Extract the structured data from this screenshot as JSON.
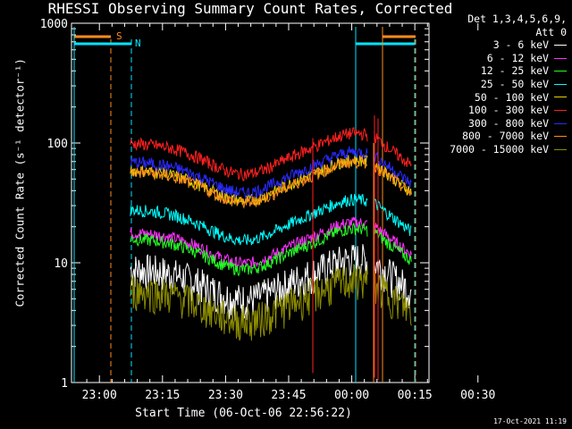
{
  "chart_data": {
    "type": "line",
    "title": "RHESSI Observing Summary Count Rates, Corrected",
    "xlabel": "Start Time (06-Oct-06 22:56:22)",
    "ylabel": "Corrected Count Rate (s⁻¹ detector⁻¹)",
    "ylim": [
      1,
      1000
    ],
    "yscale": "log",
    "yticks": [
      "1",
      "10",
      "100",
      "1000"
    ],
    "xticks": [
      "23:00",
      "23:15",
      "23:30",
      "23:45",
      "00:00",
      "00:15",
      "00:30"
    ],
    "xlim_minutes_after_start": [
      -3,
      82
    ],
    "legend_header": [
      "Det 1,3,4,5,6,9,",
      "Att 0"
    ],
    "legend_position": "top-right",
    "markers": {
      "S": {
        "label": "S",
        "color": "#ff8c1a"
      },
      "N": {
        "label": "N",
        "color": "#00e5ff"
      }
    },
    "series": [
      {
        "name": "3 - 6 keV",
        "color": "#ffffff",
        "base": 9
      },
      {
        "name": "6 - 12 keV",
        "color": "#ff30ff",
        "base": 18
      },
      {
        "name": "12 - 25 keV",
        "color": "#22ff22",
        "base": 16
      },
      {
        "name": "25 - 50 keV",
        "color": "#00ffff",
        "base": 28
      },
      {
        "name": "50 - 100 keV",
        "color": "#e6d200",
        "base": 60
      },
      {
        "name": "100 - 300 keV",
        "color": "#ff2020",
        "base": 100
      },
      {
        "name": "300 - 800 keV",
        "color": "#2a2aff",
        "base": 70
      },
      {
        "name": "800 - 7000 keV",
        "color": "#ff8c1a",
        "base": 58
      },
      {
        "name": "7000 - 15000 keV",
        "color": "#8c8c00",
        "base": 6
      }
    ]
  },
  "footer": {
    "timestamp": "17-Oct-2021 11:19"
  }
}
